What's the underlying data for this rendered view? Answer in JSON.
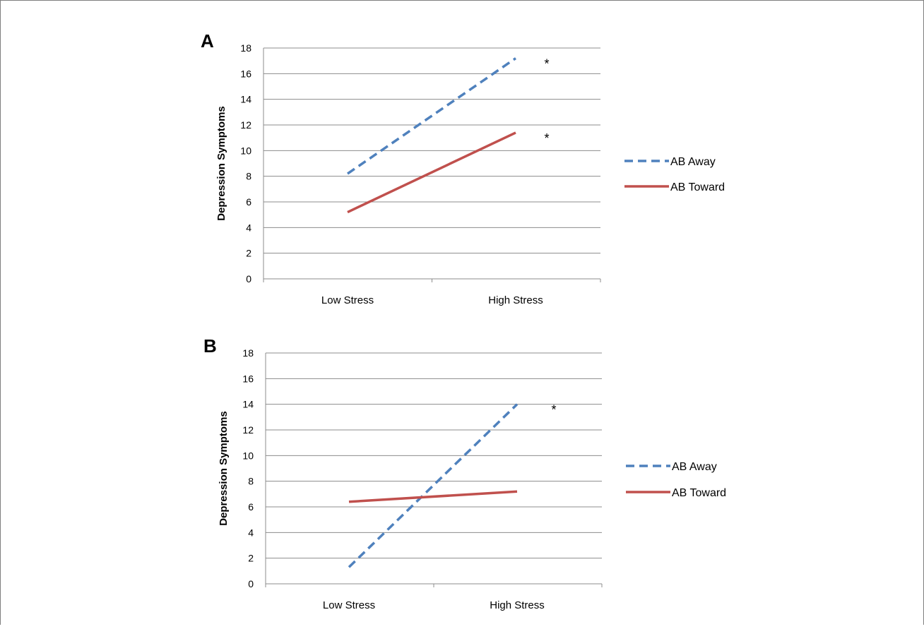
{
  "chart_data": [
    {
      "type": "line",
      "panel_label": "A",
      "ylabel": "Depression Symptoms",
      "categories": [
        "Low Stress",
        "High Stress"
      ],
      "ylim": [
        0,
        18
      ],
      "yticks": [
        "0",
        "2",
        "4",
        "6",
        "8",
        "10",
        "12",
        "14",
        "16",
        "18"
      ],
      "grid": true,
      "legend_position": "right",
      "series": [
        {
          "name": "AB Away",
          "values": [
            8.2,
            17.2
          ],
          "color": "#4F81BD",
          "style": "dashed",
          "annotation": "*"
        },
        {
          "name": "AB Toward",
          "values": [
            5.2,
            11.4
          ],
          "color": "#C0504D",
          "style": "solid",
          "annotation": "*"
        }
      ]
    },
    {
      "type": "line",
      "panel_label": "B",
      "ylabel": "Depression Symptoms",
      "categories": [
        "Low Stress",
        "High Stress"
      ],
      "ylim": [
        0,
        18
      ],
      "yticks": [
        "0",
        "2",
        "4",
        "6",
        "8",
        "10",
        "12",
        "14",
        "16",
        "18"
      ],
      "grid": true,
      "legend_position": "right",
      "series": [
        {
          "name": "AB Away",
          "values": [
            1.3,
            14.0
          ],
          "color": "#4F81BD",
          "style": "dashed",
          "annotation": "*"
        },
        {
          "name": "AB Toward",
          "values": [
            6.4,
            7.2
          ],
          "color": "#C0504D",
          "style": "solid",
          "annotation": ""
        }
      ]
    }
  ]
}
